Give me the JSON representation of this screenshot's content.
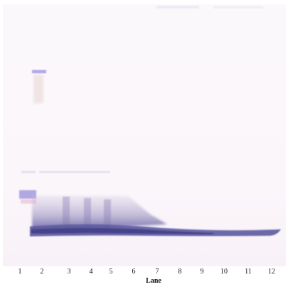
{
  "figure": {
    "lanes": [
      "1",
      "2",
      "3",
      "4",
      "5",
      "6",
      "7",
      "8",
      "9",
      "10",
      "11",
      "12"
    ],
    "axis_label": "Lane",
    "colors": {
      "membrane": "#fcf8fb",
      "band": "#5d5aa0",
      "smear": "#8b83b6",
      "ladder_marker": "#9b8fd8"
    }
  }
}
